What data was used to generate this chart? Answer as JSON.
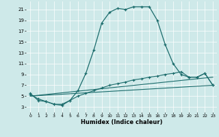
{
  "title": "",
  "xlabel": "Humidex (Indice chaleur)",
  "background_color": "#cee9e9",
  "line_color": "#1a6b6b",
  "xlim": [
    -0.5,
    23.5
  ],
  "ylim": [
    2.0,
    22.5
  ],
  "yticks": [
    3,
    5,
    7,
    9,
    11,
    13,
    15,
    17,
    19,
    21
  ],
  "xticks": [
    0,
    1,
    2,
    3,
    4,
    5,
    6,
    7,
    8,
    9,
    10,
    11,
    12,
    13,
    14,
    15,
    16,
    17,
    18,
    19,
    20,
    21,
    22,
    23
  ],
  "xtick_labels": [
    "0",
    "1",
    "2",
    "3",
    "4",
    "5",
    "6",
    "7",
    "8",
    "9",
    "10",
    "11",
    "12",
    "13",
    "14",
    "15",
    "16",
    "17",
    "18",
    "19",
    "20",
    "21",
    "22",
    "23"
  ],
  "curve1_x": [
    0,
    1,
    2,
    3,
    4,
    5,
    6,
    7,
    8,
    9,
    10,
    11,
    12,
    13,
    14,
    15,
    16,
    17,
    18,
    19,
    20,
    21,
    22,
    23
  ],
  "curve1_y": [
    5.5,
    4.2,
    4.0,
    3.5,
    3.3,
    4.2,
    6.0,
    9.2,
    13.5,
    18.5,
    20.5,
    21.2,
    21.0,
    21.5,
    21.5,
    21.5,
    19.0,
    14.5,
    11.0,
    9.0,
    8.5,
    8.5,
    9.2,
    7.0
  ],
  "curve2_x": [
    0,
    1,
    2,
    3,
    4,
    5,
    6,
    7,
    8,
    9,
    10,
    11,
    12,
    13,
    14,
    15,
    16,
    17,
    18,
    19,
    20,
    21,
    22,
    23
  ],
  "curve2_y": [
    5.3,
    4.5,
    4.0,
    3.5,
    3.5,
    4.2,
    5.0,
    5.5,
    6.0,
    6.5,
    7.0,
    7.3,
    7.6,
    8.0,
    8.2,
    8.5,
    8.7,
    9.0,
    9.2,
    9.5,
    8.5,
    8.5,
    9.2,
    7.0
  ],
  "curve3_x": [
    0,
    23
  ],
  "curve3_y": [
    5.0,
    8.5
  ],
  "curve4_x": [
    0,
    23
  ],
  "curve4_y": [
    5.0,
    7.0
  ]
}
